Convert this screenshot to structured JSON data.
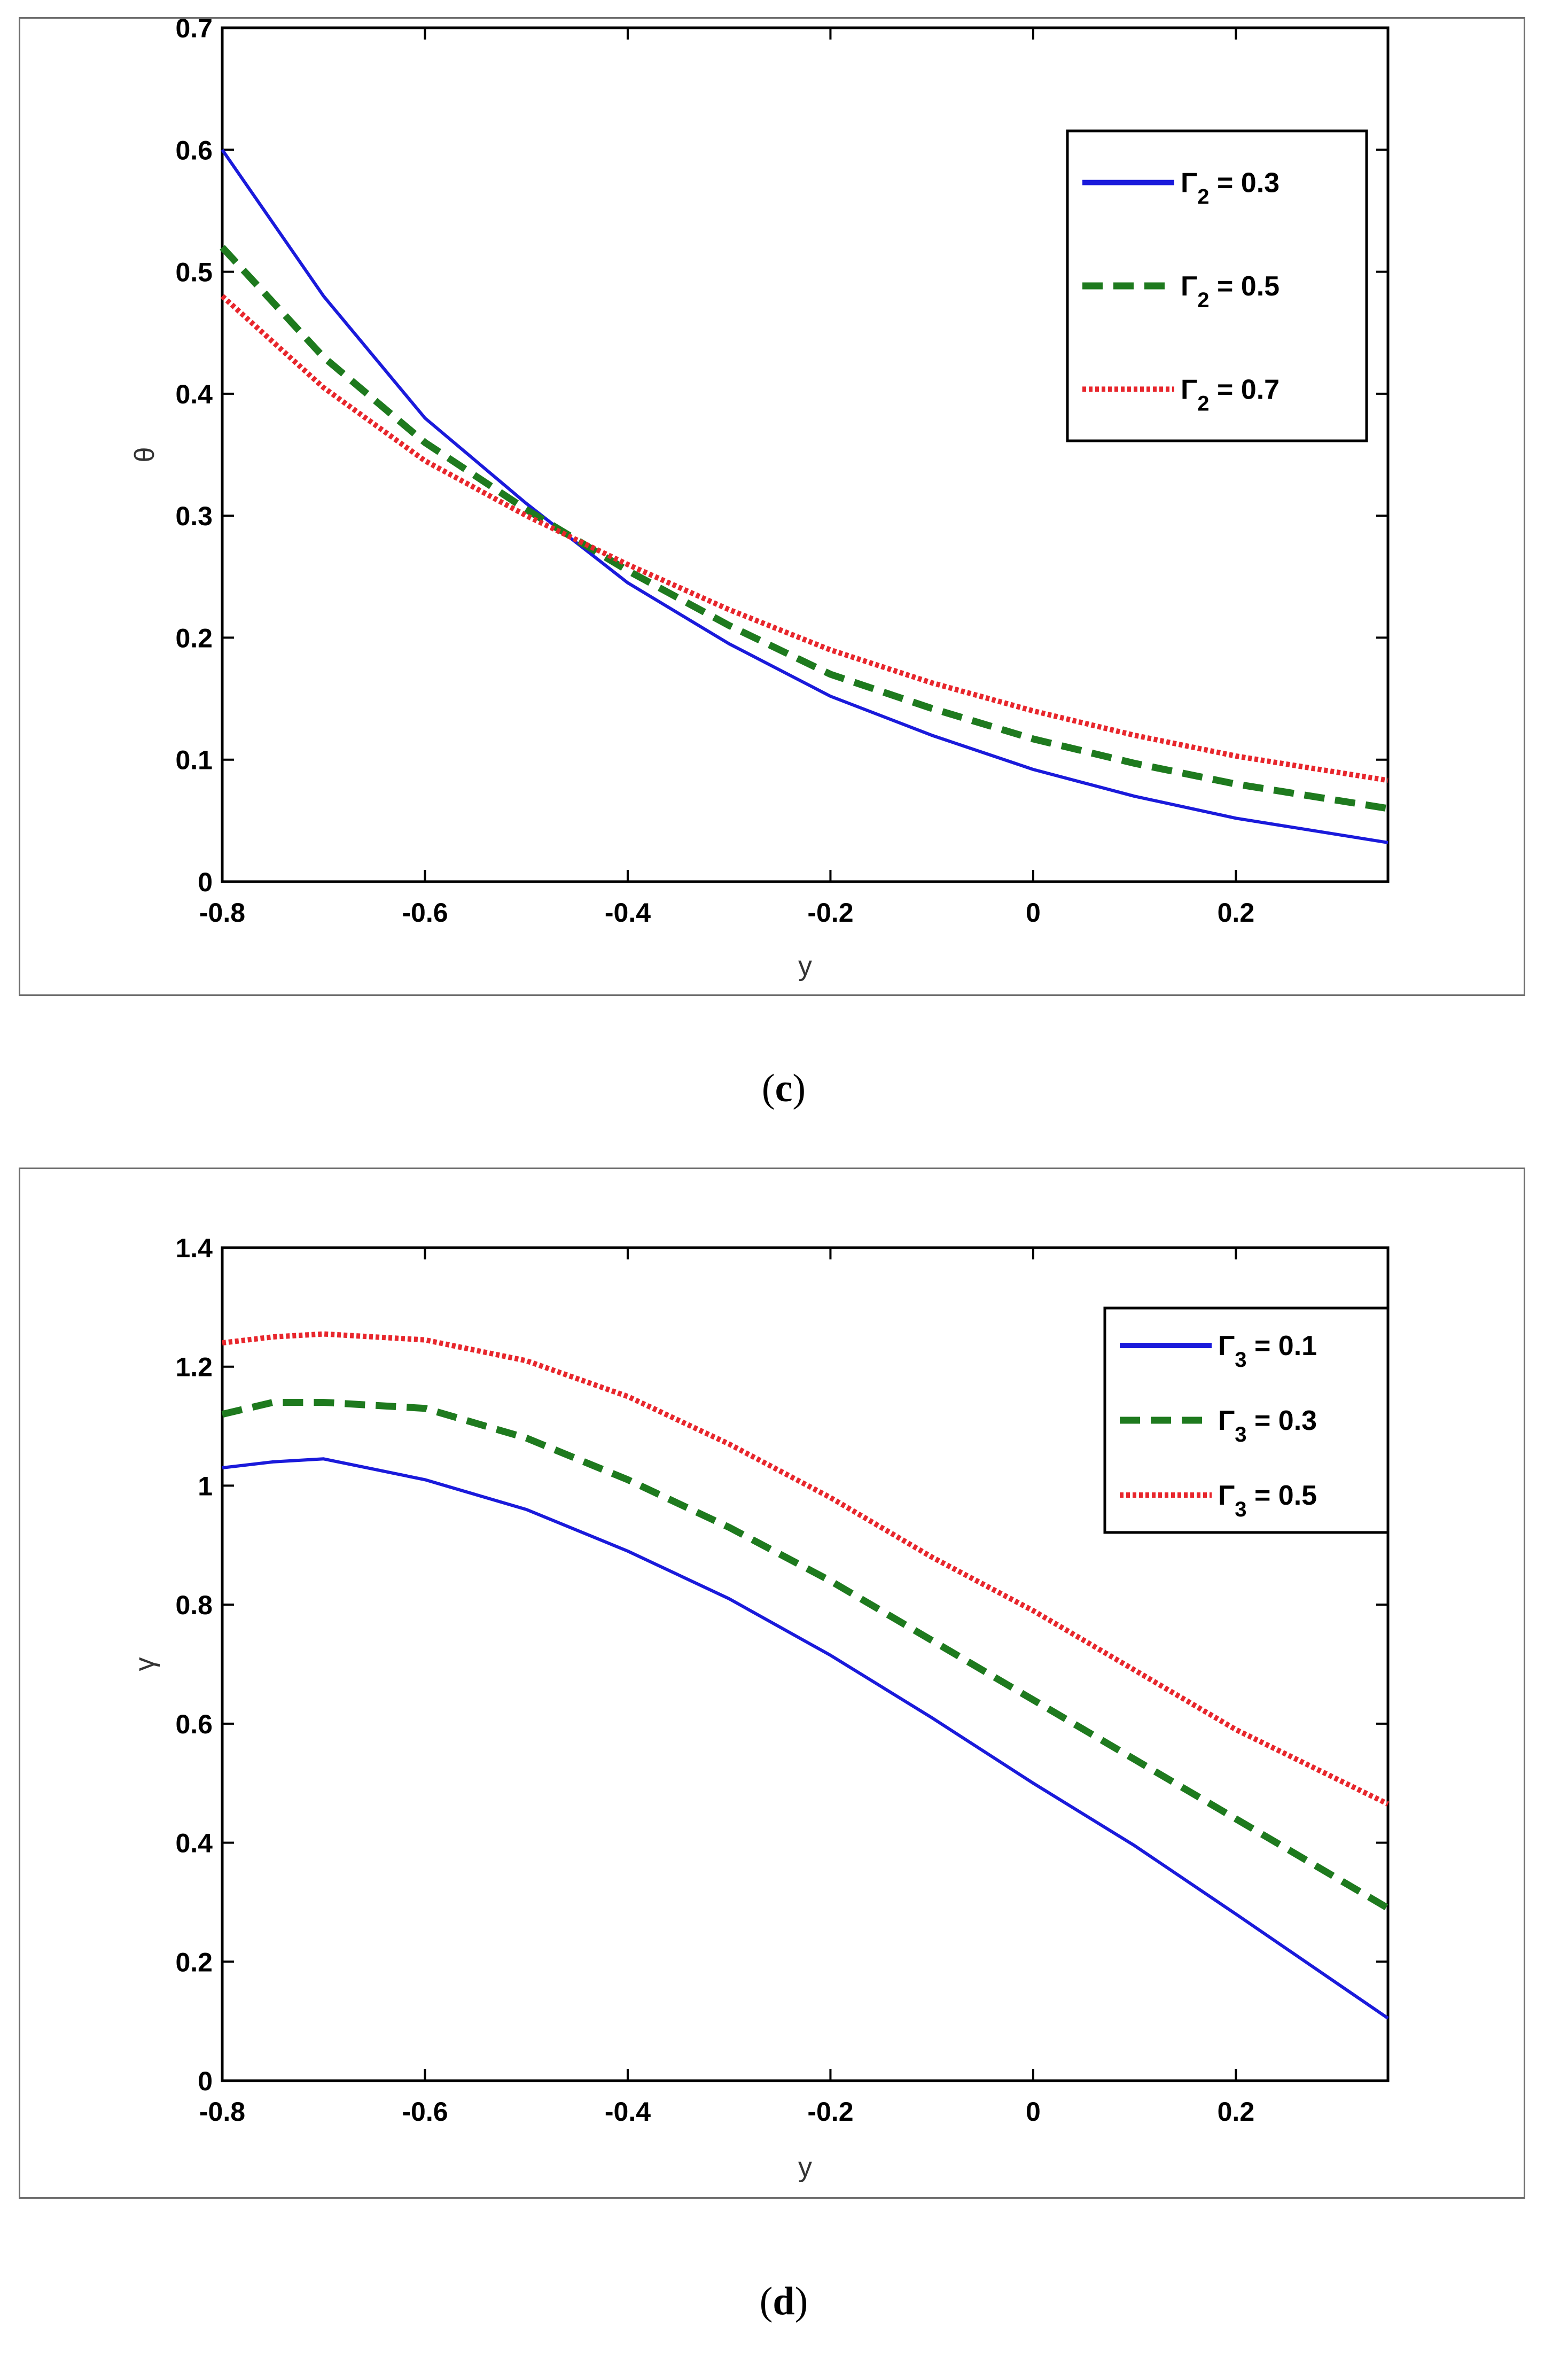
{
  "chart_data": [
    {
      "type": "line",
      "panel_label": "c",
      "xlabel": "y",
      "ylabel": "θ",
      "xlim": [
        -0.8,
        0.35
      ],
      "ylim": [
        0,
        0.7
      ],
      "x_ticks": [
        -0.8,
        -0.6,
        -0.4,
        -0.2,
        0,
        0.2
      ],
      "x_tick_labels": [
        "-0.8",
        "-0.6",
        "-0.4",
        "-0.2",
        "0",
        "0.2"
      ],
      "y_ticks": [
        0,
        0.1,
        0.2,
        0.3,
        0.4,
        0.5,
        0.6,
        0.7
      ],
      "y_tick_labels": [
        "0",
        "0.1",
        "0.2",
        "0.3",
        "0.4",
        "0.5",
        "0.6",
        "0.7"
      ],
      "grid": false,
      "legend_position": "top-right",
      "x": [
        -0.8,
        -0.7,
        -0.6,
        -0.5,
        -0.4,
        -0.3,
        -0.2,
        -0.1,
        0,
        0.1,
        0.2,
        0.35
      ],
      "series": [
        {
          "legend_sym": "Γ",
          "legend_sub": "2",
          "legend_value": " = 0.3",
          "color": "#1a1adb",
          "style": "solid",
          "values": [
            0.6,
            0.48,
            0.38,
            0.31,
            0.245,
            0.195,
            0.152,
            0.12,
            0.092,
            0.07,
            0.052,
            0.032
          ]
        },
        {
          "legend_sym": "Γ",
          "legend_sub": "2",
          "legend_value": " = 0.5",
          "color": "#1e7a1e",
          "style": "dashed",
          "values": [
            0.52,
            0.43,
            0.36,
            0.305,
            0.255,
            0.21,
            0.17,
            0.142,
            0.117,
            0.097,
            0.08,
            0.06
          ]
        },
        {
          "legend_sym": "Γ",
          "legend_sub": "2",
          "legend_value": " = 0.7",
          "color": "#e8262c",
          "style": "dotted",
          "values": [
            0.48,
            0.405,
            0.345,
            0.3,
            0.26,
            0.223,
            0.19,
            0.163,
            0.14,
            0.12,
            0.103,
            0.083
          ]
        }
      ]
    },
    {
      "type": "line",
      "panel_label": "d",
      "xlabel": "y",
      "ylabel": "γ",
      "xlim": [
        -0.8,
        0.35
      ],
      "ylim": [
        0,
        1.4
      ],
      "x_ticks": [
        -0.8,
        -0.6,
        -0.4,
        -0.2,
        0,
        0.2
      ],
      "x_tick_labels": [
        "-0.8",
        "-0.6",
        "-0.4",
        "-0.2",
        "0",
        "0.2"
      ],
      "y_ticks": [
        0,
        0.2,
        0.4,
        0.6,
        0.8,
        1.0,
        1.2,
        1.4
      ],
      "y_tick_labels": [
        "0",
        "0.2",
        "0.4",
        "0.6",
        "0.8",
        "1",
        "1.2",
        "1.4"
      ],
      "grid": false,
      "legend_position": "top-right",
      "x": [
        -0.8,
        -0.75,
        -0.7,
        -0.6,
        -0.5,
        -0.4,
        -0.3,
        -0.2,
        -0.1,
        0,
        0.1,
        0.2,
        0.35
      ],
      "series": [
        {
          "legend_sym": "Γ",
          "legend_sub": "3",
          "legend_value": " = 0.1",
          "color": "#1a1adb",
          "style": "solid",
          "values": [
            1.03,
            1.04,
            1.045,
            1.01,
            0.96,
            0.89,
            0.81,
            0.715,
            0.61,
            0.5,
            0.395,
            0.28,
            0.105
          ]
        },
        {
          "legend_sym": "Γ",
          "legend_sub": "3",
          "legend_value": " = 0.3",
          "color": "#1e7a1e",
          "style": "dashed",
          "values": [
            1.12,
            1.14,
            1.14,
            1.13,
            1.08,
            1.01,
            0.93,
            0.84,
            0.74,
            0.64,
            0.54,
            0.44,
            0.29
          ]
        },
        {
          "legend_sym": "Γ",
          "legend_sub": "3",
          "legend_value": " = 0.5",
          "color": "#e8262c",
          "style": "dotted",
          "values": [
            1.24,
            1.25,
            1.255,
            1.245,
            1.21,
            1.15,
            1.07,
            0.98,
            0.88,
            0.79,
            0.69,
            0.59,
            0.465
          ]
        }
      ]
    }
  ]
}
